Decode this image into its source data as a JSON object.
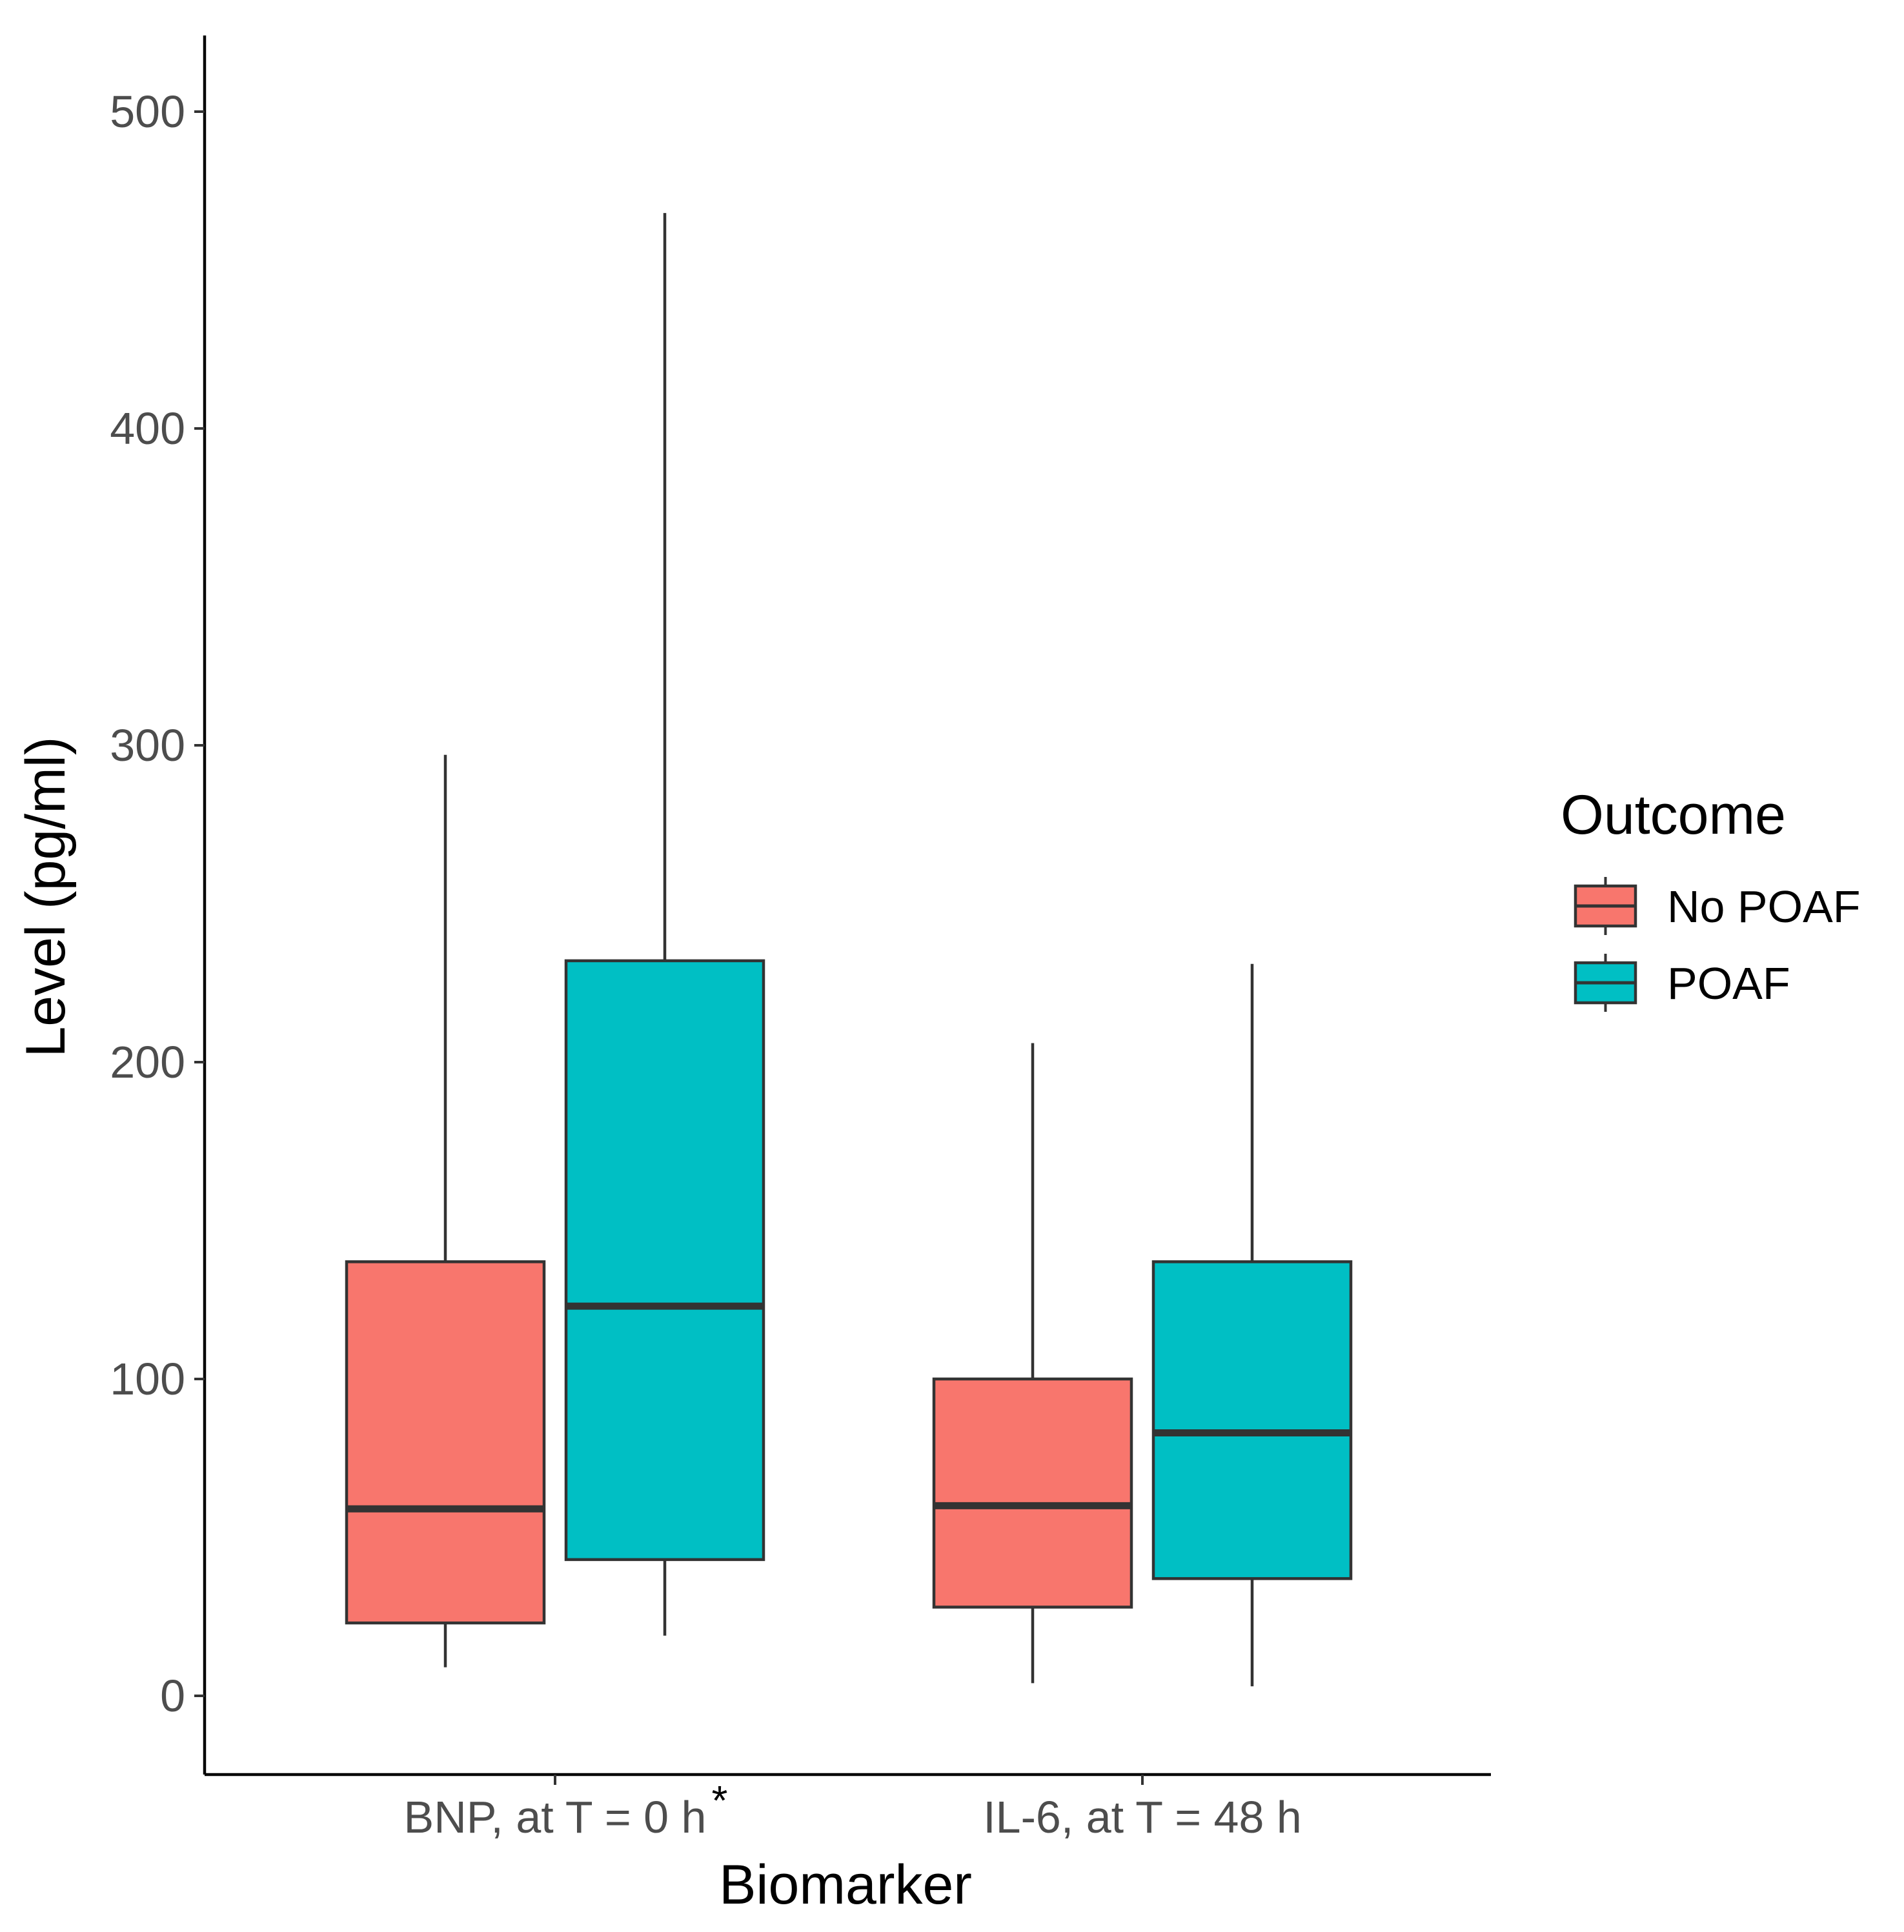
{
  "chart_data": {
    "type": "boxplot",
    "title": "",
    "xlabel": "Biomarker",
    "ylabel": "Level (pg/ml)",
    "ylim": [
      -25,
      525
    ],
    "yticks": [
      0,
      100,
      200,
      300,
      400,
      500
    ],
    "categories": [
      "BNP,  at T = 0 h",
      "IL-6,  at T = 48 h"
    ],
    "category_annotations": [
      "*",
      ""
    ],
    "legend": {
      "title": "Outcome",
      "position": "right",
      "entries": [
        "No POAF",
        "POAF"
      ]
    },
    "series": [
      {
        "name": "No POAF",
        "color": "#F8766D",
        "boxes": [
          {
            "category": "BNP,  at T = 0 h",
            "whisker_low": 9,
            "q1": 23,
            "median": 59,
            "q3": 137,
            "whisker_high": 297
          },
          {
            "category": "IL-6,  at T = 48 h",
            "whisker_low": 4,
            "q1": 28,
            "median": 60,
            "q3": 100,
            "whisker_high": 206
          }
        ]
      },
      {
        "name": "POAF",
        "color": "#00BFC4",
        "boxes": [
          {
            "category": "BNP,  at T = 0 h",
            "whisker_low": 19,
            "q1": 43,
            "median": 123,
            "q3": 232,
            "whisker_high": 468
          },
          {
            "category": "IL-6,  at T = 48 h",
            "whisker_low": 3,
            "q1": 37,
            "median": 83,
            "q3": 137,
            "whisker_high": 231
          }
        ]
      }
    ],
    "grid": false
  }
}
